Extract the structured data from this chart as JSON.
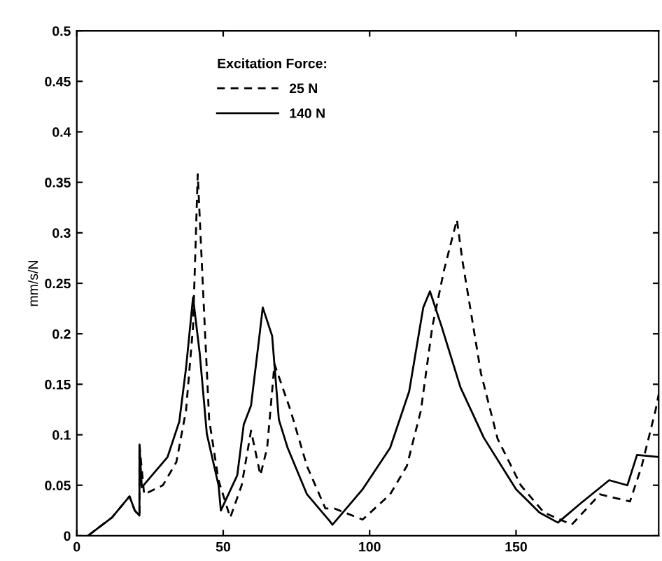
{
  "chart_data": {
    "type": "line",
    "ylabel": "mm/s/N",
    "legend_title": "Excitation Force:",
    "legend": "top",
    "grid": false,
    "xlim": [
      0,
      198.7
    ],
    "xticks": [
      0,
      50,
      100,
      150
    ],
    "ylim": [
      0,
      0.5
    ],
    "yticks": [
      0,
      0.05,
      0.1,
      0.15,
      0.2,
      0.25,
      0.3,
      0.35,
      0.4,
      0.45,
      0.5
    ],
    "series": [
      {
        "name": "25 N",
        "color": "#000000",
        "line_style": "dashed",
        "x": [
          3.8,
          12,
          18,
          19.8,
          21.4,
          21.4,
          23,
          29.4,
          34,
          37.3,
          39.7,
          41.3,
          43.7,
          45.2,
          48.4,
          52.4,
          56.3,
          59.5,
          62.7,
          65,
          67.5,
          73,
          78.6,
          84.9,
          88,
          97.6,
          107,
          112.7,
          117.5,
          121.4,
          125.4,
          129.8,
          131.7,
          134.1,
          138,
          143.7,
          151.6,
          159.5,
          169,
          178.6,
          188.9,
          192.9,
          197.6,
          198.7
        ],
        "values": [
          0,
          0.018,
          0.039,
          0.025,
          0.02,
          0.09,
          0.041,
          0.05,
          0.073,
          0.124,
          0.207,
          0.358,
          0.207,
          0.115,
          0.055,
          0.018,
          0.05,
          0.104,
          0.06,
          0.087,
          0.17,
          0.124,
          0.069,
          0.027,
          0.027,
          0.016,
          0.041,
          0.069,
          0.124,
          0.207,
          0.263,
          0.313,
          0.272,
          0.23,
          0.161,
          0.096,
          0.05,
          0.023,
          0.011,
          0.041,
          0.034,
          0.069,
          0.124,
          0.14
        ]
      },
      {
        "name": "140 N",
        "color": "#000000",
        "line_style": "solid",
        "x": [
          3.8,
          12,
          18,
          19.8,
          21.4,
          21.4,
          22.2,
          31,
          35,
          37.3,
          39.7,
          42,
          44.4,
          48.4,
          49.2,
          54.8,
          57,
          59.5,
          62,
          63.5,
          66.7,
          69,
          72,
          78.6,
          86.5,
          87.3,
          97.6,
          107,
          113.5,
          118.3,
          120.6,
          124.6,
          131,
          139,
          150,
          158,
          164.3,
          172,
          181.8,
          188,
          191.3,
          198.7
        ],
        "values": [
          0,
          0.018,
          0.039,
          0.025,
          0.02,
          0.09,
          0.048,
          0.078,
          0.113,
          0.166,
          0.236,
          0.18,
          0.101,
          0.05,
          0.025,
          0.06,
          0.11,
          0.129,
          0.189,
          0.226,
          0.198,
          0.115,
          0.087,
          0.041,
          0.014,
          0.011,
          0.046,
          0.087,
          0.143,
          0.226,
          0.242,
          0.207,
          0.147,
          0.097,
          0.046,
          0.023,
          0.013,
          0.032,
          0.055,
          0.05,
          0.08,
          0.078
        ]
      }
    ]
  }
}
